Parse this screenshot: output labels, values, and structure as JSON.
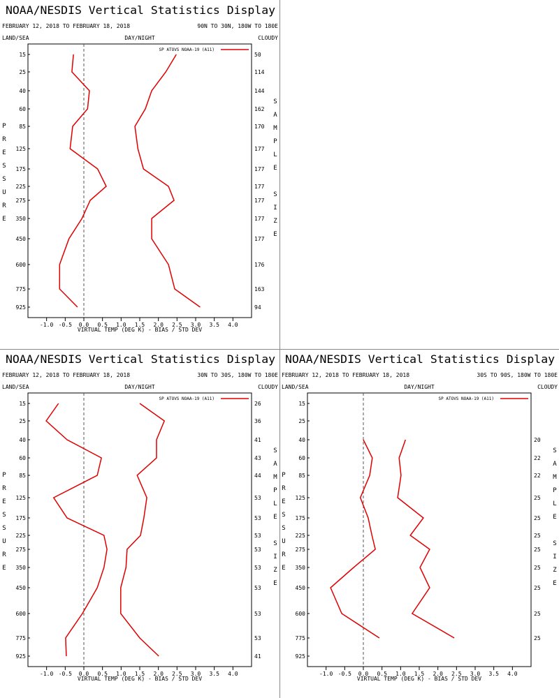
{
  "chart_data": [
    {
      "type": "line",
      "title": "NOAA/NESDIS Vertical Statistics Display",
      "date_range": "FEBRUARY 12, 2018 TO FEBRUARY 18, 2018",
      "region": "90N TO 30N, 180W TO 180E",
      "land_sea": "LAND/SEA",
      "day_night": "DAY/NIGHT",
      "cloudy": "CLOUDY",
      "y_label": "PRESSURE",
      "y2_label": "SAMPLE SIZE",
      "x_label": "VIRTUAL TEMP (DEG K) - BIAS / STD DEV",
      "categories": [
        "15",
        "25",
        "40",
        "60",
        "85",
        "125",
        "175",
        "225",
        "275",
        "350",
        "450",
        "600",
        "775",
        "925"
      ],
      "sample_size": [
        50,
        114,
        144,
        162,
        170,
        177,
        177,
        177,
        177,
        177,
        177,
        176,
        163,
        94
      ],
      "series": [
        {
          "name": "SP ATOVS NOAA-19 (A11)",
          "color": "#e00000",
          "values": [
            -0.28,
            -0.32,
            0.15,
            0.1,
            -0.3,
            -0.37,
            0.37,
            0.6,
            0.17,
            -0.05,
            -0.4,
            -0.65,
            -0.65,
            -0.17
          ],
          "std_dev": [
            2.48,
            2.2,
            1.82,
            1.65,
            1.37,
            1.45,
            1.6,
            2.27,
            2.42,
            1.82,
            1.82,
            2.27,
            2.44,
            3.12
          ]
        }
      ],
      "xlim": [
        -1.5,
        4.5
      ],
      "xticks": [
        {
          "value": -1,
          "label": "-1.0"
        },
        -0.5,
        {
          "value": 0,
          "label": "0.0"
        },
        0.5,
        {
          "value": 1,
          "label": "1.0"
        },
        1.5,
        {
          "value": 2,
          "label": "2.0"
        },
        2.5,
        {
          "value": 3,
          "label": "3.0"
        },
        3.5,
        {
          "value": 4,
          "label": "4.0"
        }
      ]
    },
    {
      "type": "line",
      "title": "NOAA/NESDIS Vertical Statistics Display",
      "date_range": "FEBRUARY 12, 2018 TO FEBRUARY 18, 2018",
      "region": "30N TO 30S, 180W TO 180E",
      "land_sea": "LAND/SEA",
      "day_night": "DAY/NIGHT",
      "cloudy": "CLOUDY",
      "y_label": "PRESSURE",
      "y2_label": "SAMPLE SIZE",
      "x_label": "VIRTUAL TEMP (DEG K) - BIAS / STD DEV",
      "categories": [
        "15",
        "25",
        "40",
        "60",
        "85",
        "125",
        "175",
        "225",
        "275",
        "350",
        "450",
        "600",
        "775",
        "925"
      ],
      "sample_size": [
        26,
        36,
        41,
        43,
        44,
        53,
        53,
        53,
        53,
        53,
        53,
        53,
        53,
        41
      ],
      "series": [
        {
          "name": "SP ATOVS NOAA-19 (A11)",
          "color": "#e00000",
          "values": [
            -0.68,
            -1.01,
            -0.45,
            0.47,
            0.36,
            -0.81,
            -0.45,
            0.54,
            0.62,
            0.54,
            0.36,
            -0.04,
            -0.49,
            -0.47
          ],
          "std_dev": [
            1.5,
            2.16,
            1.95,
            1.95,
            1.43,
            1.69,
            1.61,
            1.52,
            1.16,
            1.13,
            0.99,
            0.99,
            1.5,
            2.01
          ]
        }
      ],
      "xlim": [
        -1.5,
        4.5
      ],
      "xticks": [
        {
          "value": -1,
          "label": "-1.0"
        },
        -0.5,
        {
          "value": 0,
          "label": "0.0"
        },
        0.5,
        {
          "value": 1,
          "label": "1.0"
        },
        1.5,
        {
          "value": 2,
          "label": "2.0"
        },
        2.5,
        {
          "value": 3,
          "label": "3.0"
        },
        3.5,
        {
          "value": 4,
          "label": "4.0"
        }
      ]
    },
    {
      "type": "line",
      "title": "NOAA/NESDIS Vertical Statistics Display",
      "date_range": "FEBRUARY 12, 2018 TO FEBRUARY 18, 2018",
      "region": "30S TO 90S, 180W TO 180E",
      "land_sea": "LAND/SEA",
      "day_night": "DAY/NIGHT",
      "cloudy": "CLOUDY",
      "y_label": "PRESSURE",
      "y2_label": "SAMPLE SIZE",
      "x_label": "VIRTUAL TEMP (DEG K) - BIAS / STD DEV",
      "categories": [
        "15",
        "25",
        "40",
        "60",
        "85",
        "125",
        "175",
        "225",
        "275",
        "350",
        "450",
        "600",
        "775",
        "925"
      ],
      "sample_size": [
        null,
        null,
        20,
        22,
        22,
        25,
        25,
        25,
        25,
        25,
        25,
        25,
        25,
        null
      ],
      "series": [
        {
          "name": "SP ATOVS NOAA-19 (A11)",
          "color": "#e00000",
          "values": [
            null,
            null,
            0.0,
            0.24,
            0.17,
            -0.08,
            0.13,
            0.23,
            0.32,
            -0.26,
            -0.88,
            -0.58,
            0.43,
            null
          ],
          "std_dev": [
            null,
            null,
            1.13,
            0.96,
            1.01,
            0.92,
            1.61,
            1.26,
            1.78,
            1.52,
            1.78,
            1.31,
            2.44,
            null
          ]
        }
      ],
      "xlim": [
        -1.5,
        4.5
      ],
      "xticks": [
        {
          "value": -1,
          "label": "-1.0"
        },
        -0.5,
        {
          "value": 0,
          "label": "0.0"
        },
        0.5,
        {
          "value": 1,
          "label": "1.0"
        },
        1.5,
        {
          "value": 2,
          "label": "2.0"
        },
        2.5,
        {
          "value": 3,
          "label": "3.0"
        },
        3.5,
        {
          "value": 4,
          "label": "4.0"
        }
      ]
    }
  ]
}
